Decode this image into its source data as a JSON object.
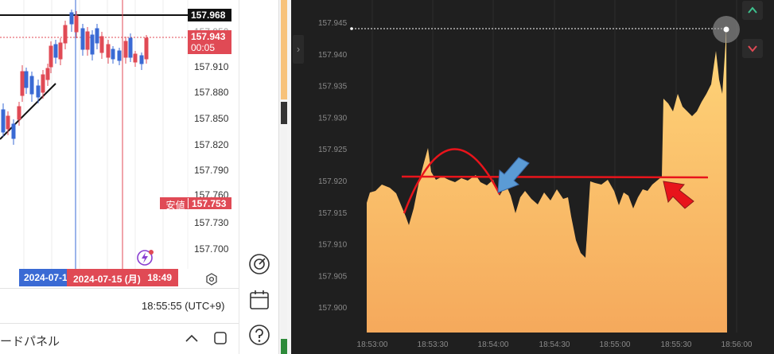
{
  "left_chart": {
    "price_ticks": [
      "157.910",
      "157.880",
      "157.850",
      "157.820",
      "157.790",
      "157.760",
      "157.730",
      "157.700"
    ],
    "price_tick_partial": "157.950",
    "high_tag": "157.968",
    "current_tag": {
      "price": "157.943",
      "countdown": "00:05"
    },
    "yasune_tag": {
      "label": "安値",
      "price": "157.753"
    },
    "date_blue": "2024-07-1",
    "date_red": {
      "date": "2024-07-15 (月)",
      "time": "18:49"
    },
    "clock": "18:55:55 (UTC+9)",
    "bottom_panel_title": "ードパネル",
    "colors": {
      "up": "#e04a55",
      "down": "#3a6ad4",
      "high_line": "#111111"
    }
  },
  "tool_strip": {
    "icons": [
      "target-icon",
      "calendar-icon",
      "help-icon"
    ]
  },
  "right_chart": {
    "y_ticks": [
      "157.945",
      "157.940",
      "157.935",
      "157.930",
      "157.925",
      "157.920",
      "157.915",
      "157.910",
      "157.905",
      "157.900"
    ],
    "x_ticks": [
      "18:53:00",
      "18:53:30",
      "18:54:00",
      "18:54:30",
      "18:55:00",
      "18:55:30",
      "18:56:00"
    ],
    "colors": {
      "background": "#1f1f1f",
      "area_top": "#ffd77a",
      "area_bottom": "#f5a95c",
      "annotation": "#e8141b",
      "arrow_blue": "#5b9bd5"
    },
    "buttons": [
      "chevron-up-icon",
      "chevron-down-icon"
    ]
  }
}
